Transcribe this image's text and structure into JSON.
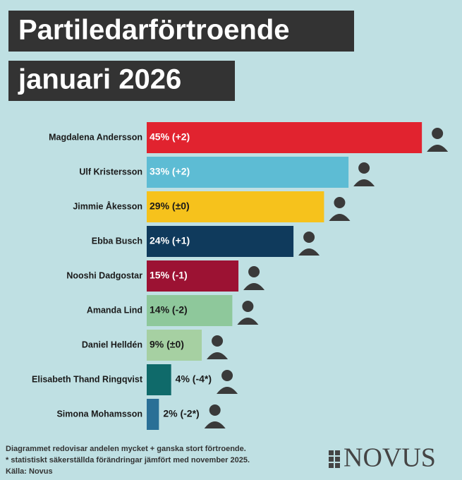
{
  "chart_data": {
    "type": "bar",
    "orientation": "horizontal",
    "title": [
      "Partiledarförtroende",
      "januari 2026"
    ],
    "categories": [
      "Magdalena Andersson",
      "Ulf Kristersson",
      "Jimmie Åkesson",
      "Ebba Busch",
      "Nooshi Dadgostar",
      "Amanda Lind",
      "Daniel Helldén",
      "Elisabeth Thand Ringqvist",
      "Simona Mohamsson"
    ],
    "values": [
      45,
      33,
      29,
      24,
      15,
      14,
      9,
      4,
      2
    ],
    "value_labels": [
      "45% (+2)",
      "33% (+2)",
      "29% (±0)",
      "24% (+1)",
      "15% (-1)",
      "14% (-2)",
      "9% (±0)",
      "4% (-4*)",
      "2% (-2*)"
    ],
    "colors": [
      "#e1232f",
      "#5dbcd4",
      "#f6c21c",
      "#0f3a5c",
      "#9c1233",
      "#8ec89b",
      "#a6d0a2",
      "#0f6a6a",
      "#2a6f96"
    ],
    "label_colors": [
      "#ffffff",
      "#ffffff",
      "#1a1a1a",
      "#ffffff",
      "#ffffff",
      "#1a1a1a",
      "#1a1a1a",
      "#1a1a1a",
      "#1a1a1a"
    ],
    "footnotes": [
      "Diagrammet redovisar andelen mycket + ganska stort förtroende.",
      "* statistiskt säkerställda förändringar jämfört med november 2025.",
      "Källa: Novus"
    ],
    "logo": "NOVUS"
  }
}
